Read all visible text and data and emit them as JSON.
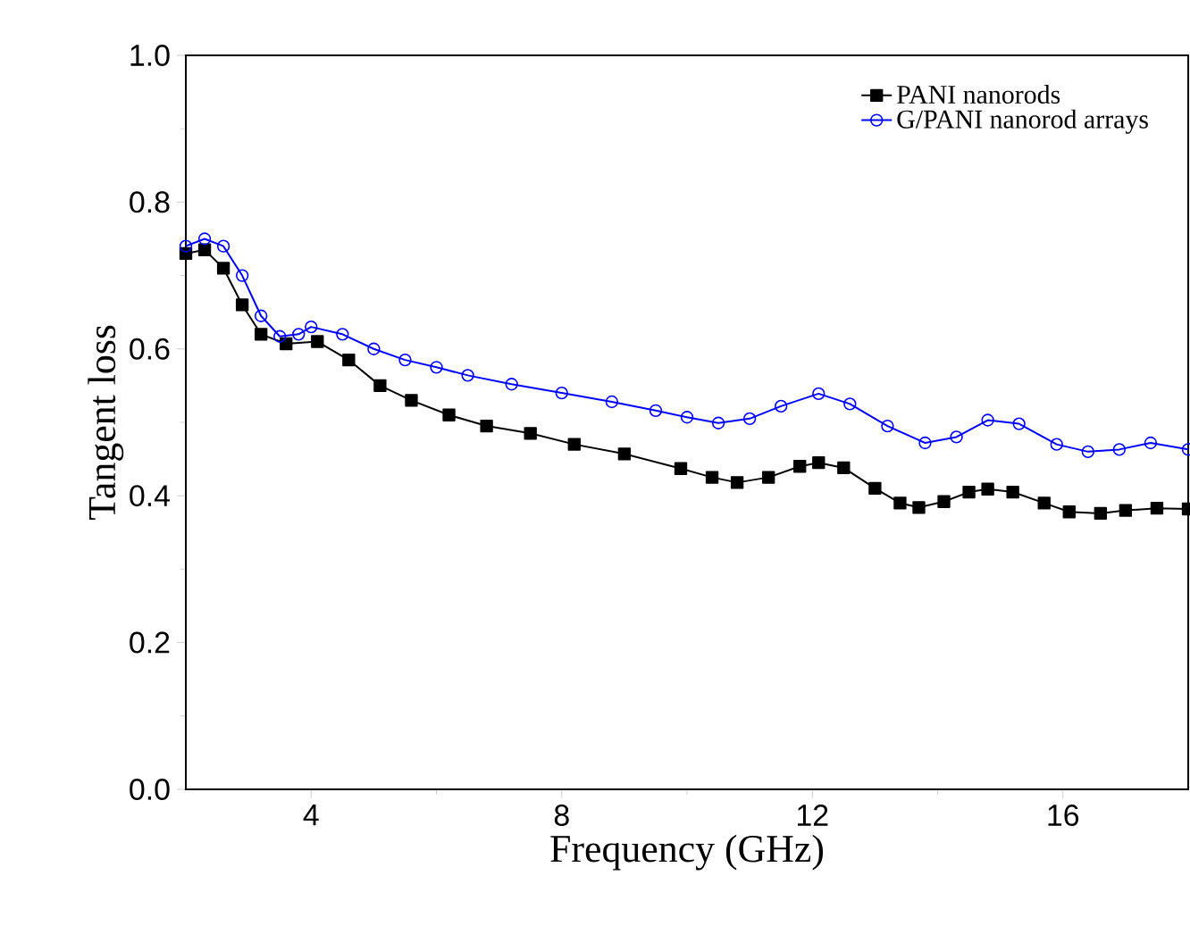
{
  "chart_data": {
    "type": "line",
    "xlabel": "Frequency (GHz)",
    "ylabel": "Tangent loss",
    "xlim": [
      2,
      18
    ],
    "ylim": [
      0,
      1.0
    ],
    "xticks": [
      4,
      8,
      12,
      16
    ],
    "yticks": [
      {
        "value": 0,
        "label": "0.0"
      },
      0.2,
      0.4,
      0.6,
      0.8,
      {
        "value": 1,
        "label": "1.0"
      }
    ],
    "legend": "top right",
    "grid": false,
    "series": [
      {
        "name": "PANI nanorods",
        "color": "#000000",
        "marker": "square",
        "x": [
          2.0,
          2.3,
          2.6,
          2.9,
          3.2,
          3.6,
          4.1,
          4.6,
          5.1,
          5.6,
          6.2,
          6.8,
          7.5,
          8.2,
          9.0,
          9.9,
          10.4,
          10.8,
          11.3,
          11.8,
          12.1,
          12.5,
          13.0,
          13.4,
          13.7,
          14.1,
          14.5,
          14.8,
          15.2,
          15.7,
          16.1,
          16.6,
          17.0,
          17.5,
          18.0
        ],
        "values": [
          0.73,
          0.735,
          0.71,
          0.66,
          0.62,
          0.607,
          0.61,
          0.585,
          0.55,
          0.53,
          0.51,
          0.495,
          0.485,
          0.47,
          0.457,
          0.437,
          0.425,
          0.418,
          0.425,
          0.44,
          0.445,
          0.438,
          0.41,
          0.39,
          0.384,
          0.392,
          0.405,
          0.409,
          0.405,
          0.39,
          0.378,
          0.376,
          0.38,
          0.383,
          0.382
        ]
      },
      {
        "name": "G/PANI nanorod arrays",
        "color": "#0000ff",
        "marker": "circle",
        "x": [
          2.0,
          2.3,
          2.6,
          2.9,
          3.2,
          3.5,
          3.8,
          4.0,
          4.5,
          5.0,
          5.5,
          6.0,
          6.5,
          7.2,
          8.0,
          8.8,
          9.5,
          10.0,
          10.5,
          11.0,
          11.5,
          12.1,
          12.6,
          13.2,
          13.8,
          14.3,
          14.8,
          15.3,
          15.9,
          16.4,
          16.9,
          17.4,
          18.0
        ],
        "values": [
          0.74,
          0.75,
          0.74,
          0.7,
          0.645,
          0.617,
          0.62,
          0.63,
          0.62,
          0.6,
          0.585,
          0.575,
          0.564,
          0.552,
          0.54,
          0.528,
          0.516,
          0.507,
          0.499,
          0.505,
          0.522,
          0.539,
          0.525,
          0.495,
          0.472,
          0.48,
          0.503,
          0.498,
          0.47,
          0.46,
          0.463,
          0.472,
          0.463
        ]
      }
    ]
  }
}
